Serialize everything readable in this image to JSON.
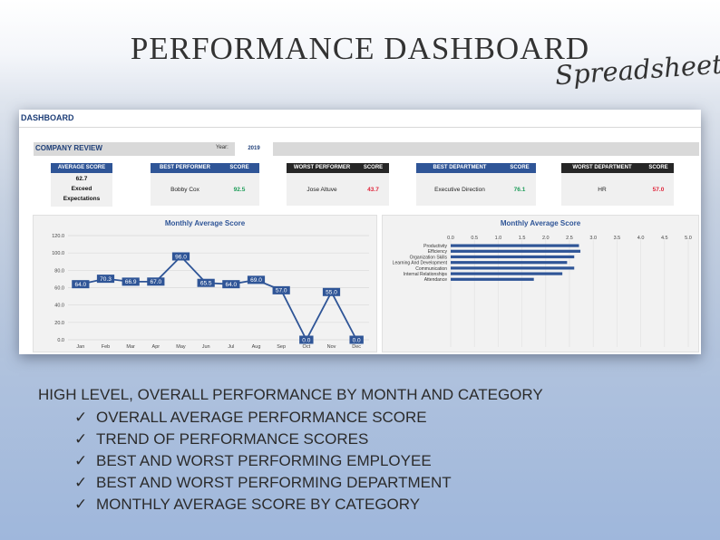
{
  "hero": {
    "title": "PERFORMANCE DASHBOARD",
    "script": "Spreadsheet"
  },
  "sheet": {
    "title": "DASHBOARD",
    "review_label": "COMPANY REVIEW",
    "year_label": "Year:",
    "year": "2019"
  },
  "kpis": {
    "average": {
      "header": "AVERAGE SCORE",
      "value": "62.7",
      "rating_1": "Exceed",
      "rating_2": "Expectations"
    },
    "best_performer": {
      "header": "BEST PERFORMER",
      "score_header": "SCORE",
      "name": "Bobby Cox",
      "score": "92.5"
    },
    "worst_performer": {
      "header": "WORST PERFORMER",
      "score_header": "SCORE",
      "name": "Jose Altuve",
      "score": "43.7"
    },
    "best_department": {
      "header": "BEST DEPARTMENT",
      "score_header": "SCORE",
      "name": "Executive Direction",
      "score": "76.1"
    },
    "worst_department": {
      "header": "WORST DEPARTMENT",
      "score_header": "SCORE",
      "name": "HR",
      "score": "57.0"
    }
  },
  "colors": {
    "accent": "#2f5597",
    "dark": "#262626",
    "good": "#1c9c58",
    "bad": "#e0243a"
  },
  "chart_data": [
    {
      "type": "line",
      "title": "Monthly Average Score",
      "categories": [
        "Jan",
        "Feb",
        "Mar",
        "Apr",
        "May",
        "Jun",
        "Jul",
        "Aug",
        "Sep",
        "Oct",
        "Nov",
        "Dec"
      ],
      "values": [
        64.0,
        70.3,
        66.9,
        67.0,
        96.0,
        65.5,
        64.0,
        69.0,
        57.0,
        0.0,
        55.0,
        0.0
      ],
      "data_labels": [
        "64.0",
        "70.3",
        "66.9",
        "67.0",
        "96.0",
        "65.5",
        "64.0",
        "69.0",
        "57.0",
        "0.0",
        "55.0",
        "0.0"
      ],
      "y_ticks": [
        "0.0",
        "20.0",
        "40.0",
        "60.0",
        "80.0",
        "100.0",
        "120.0"
      ],
      "ylim": [
        0,
        120
      ],
      "grid": true,
      "color": "#2f5597"
    },
    {
      "type": "bar",
      "orientation": "horizontal",
      "title": "Monthly Average Score",
      "categories": [
        "Productivity",
        "Efficiency",
        "Organization Skills",
        "Learning And Development",
        "Communication",
        "Internal Relationships",
        "Attendance"
      ],
      "values": [
        2.7,
        2.73,
        2.6,
        2.45,
        2.6,
        2.35,
        1.75
      ],
      "x_ticks": [
        "0.0",
        "0.5",
        "1.0",
        "1.5",
        "2.0",
        "2.5",
        "3.0",
        "3.5",
        "4.0",
        "4.5",
        "5.0"
      ],
      "xlim": [
        0,
        5
      ],
      "grid": true,
      "color": "#2f5597"
    }
  ],
  "features": {
    "headline": "HIGH LEVEL, OVERALL PERFORMANCE BY MONTH AND CATEGORY",
    "check": "✓",
    "items": [
      "OVERALL AVERAGE PERFORMANCE SCORE",
      "TREND OF PERFORMANCE SCORES",
      "BEST AND WORST PERFORMING EMPLOYEE",
      "BEST AND WORST PERFORMING DEPARTMENT",
      "MONTHLY AVERAGE SCORE BY CATEGORY"
    ]
  }
}
